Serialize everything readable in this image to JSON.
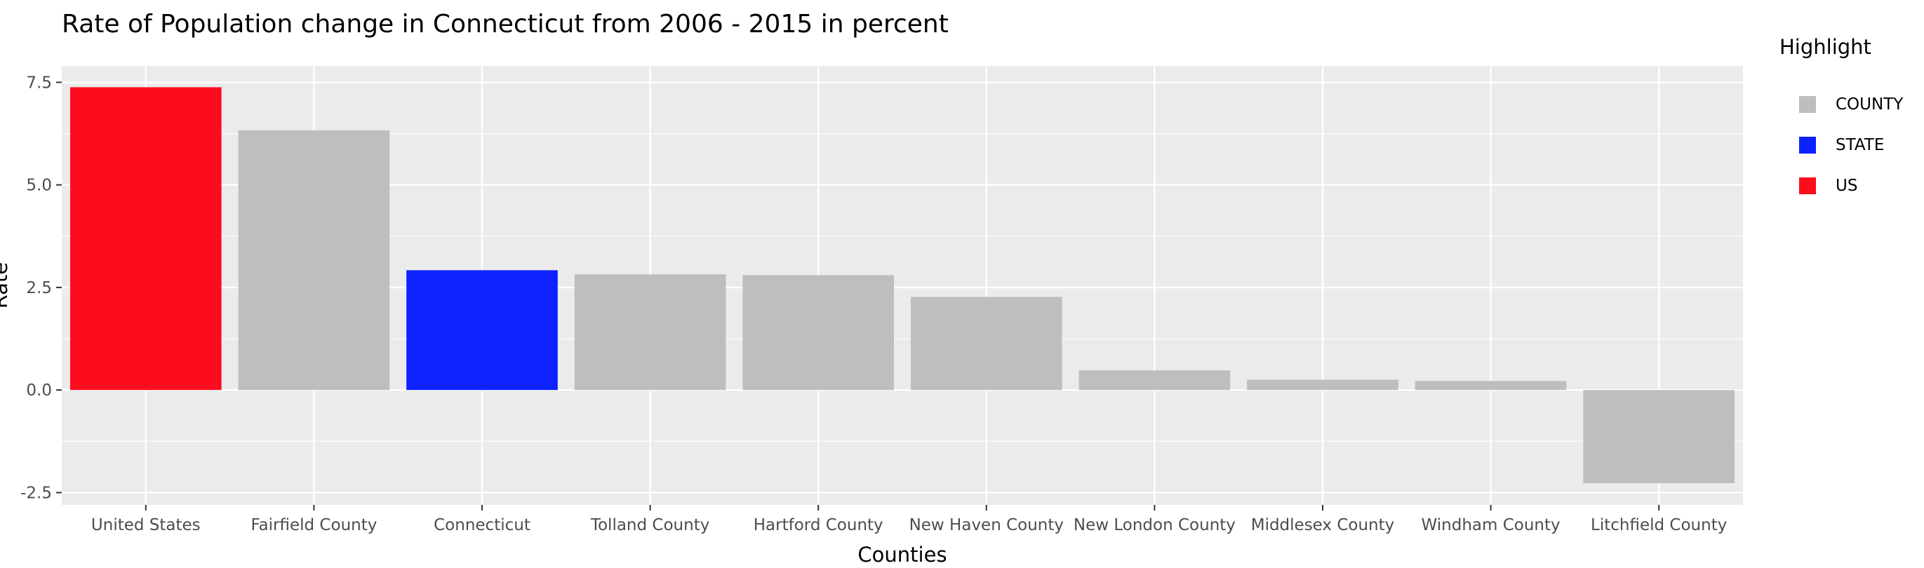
{
  "chart_data": {
    "type": "bar",
    "title": "Rate of Population change in Connecticut from 2006 - 2015 in percent",
    "xlabel": "Counties",
    "ylabel": "Rate",
    "ylim": [
      -2.8,
      7.9
    ],
    "yticks": [
      -2.5,
      0.0,
      2.5,
      5.0,
      7.5
    ],
    "ytick_labels": [
      "-2.5",
      "0.0",
      "2.5",
      "5.0",
      "7.5"
    ],
    "grid": true,
    "legend_position": "right",
    "categories": [
      "United States",
      "Fairfield County",
      "Connecticut",
      "Tolland County",
      "Hartford County",
      "New Haven County",
      "New London County",
      "Middlesex County",
      "Windham County",
      "Litchfield County"
    ],
    "values": [
      7.38,
      6.33,
      2.92,
      2.82,
      2.8,
      2.27,
      0.48,
      0.25,
      0.22,
      -2.27
    ],
    "highlight": [
      "US",
      "COUNTY",
      "STATE",
      "COUNTY",
      "COUNTY",
      "COUNTY",
      "COUNTY",
      "COUNTY",
      "COUNTY",
      "COUNTY"
    ],
    "legend": {
      "title": "Highlight",
      "items": [
        {
          "label": "COUNTY",
          "color": "#bebebe"
        },
        {
          "label": "STATE",
          "color": "#0d22ff"
        },
        {
          "label": "US",
          "color": "#fc0d1e"
        }
      ]
    }
  }
}
